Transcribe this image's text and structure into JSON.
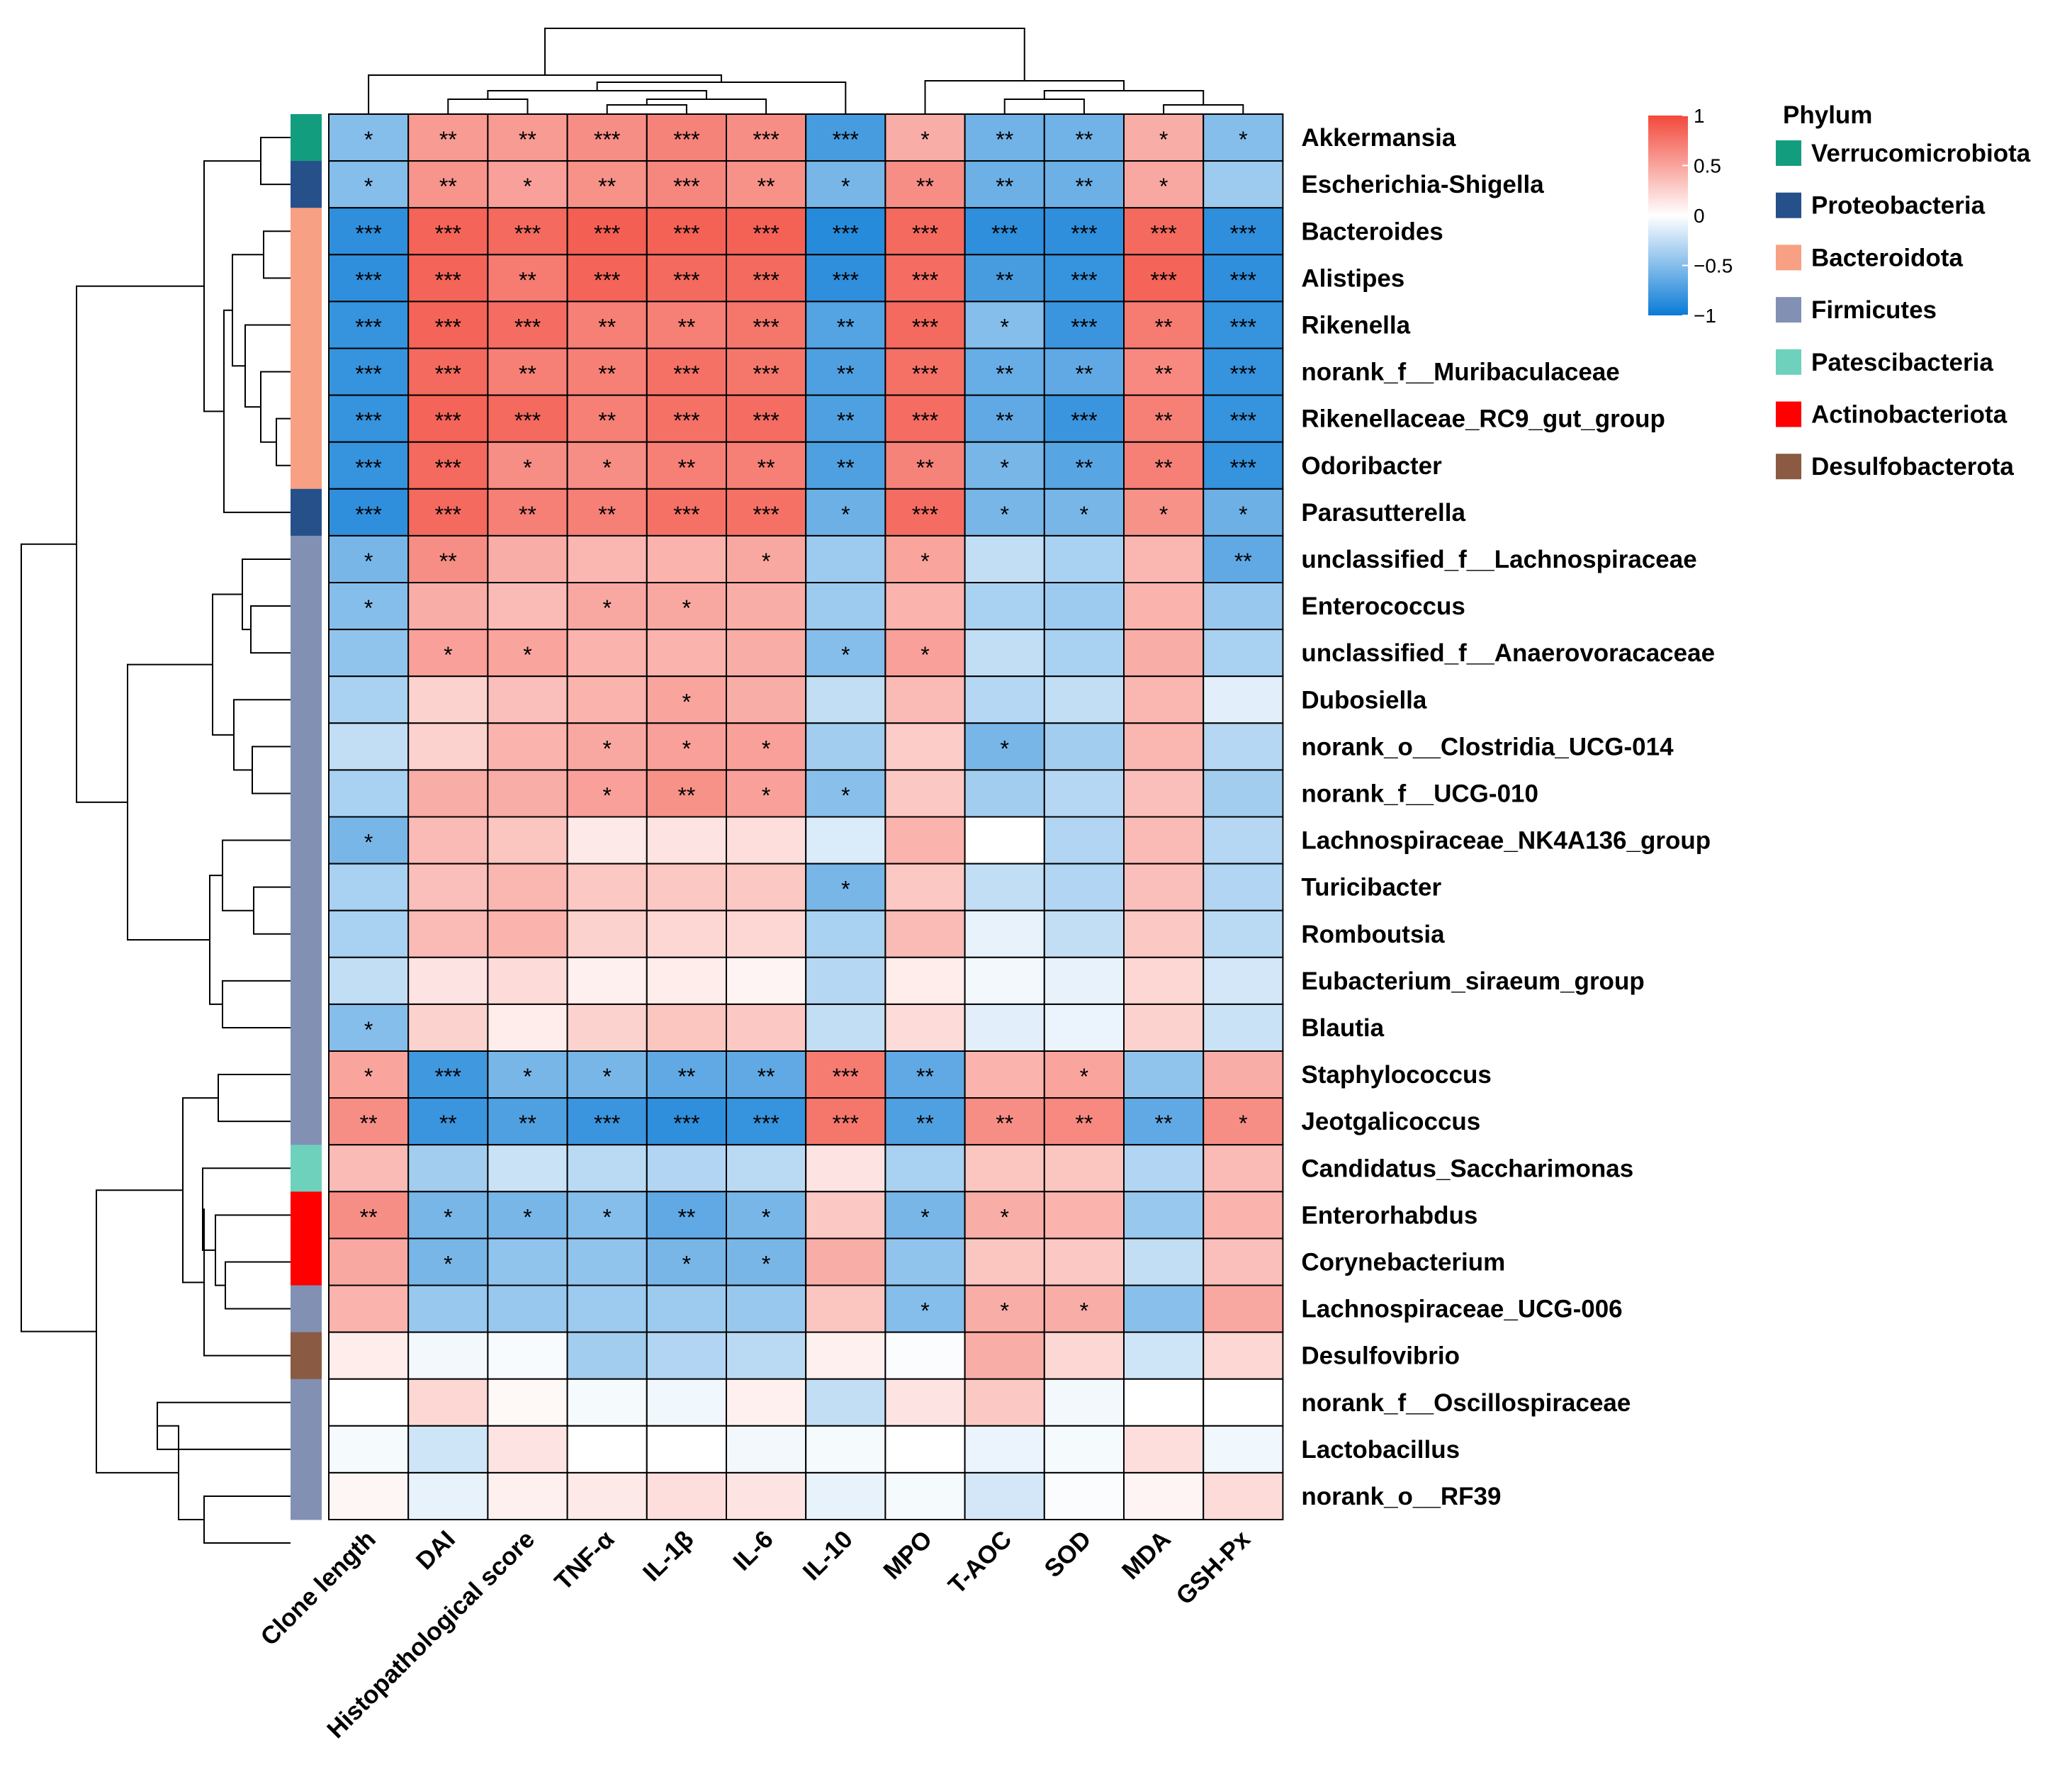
{
  "chart_data": {
    "type": "heatmap",
    "columns": [
      "Clone length",
      "DAI",
      "Histopathological score",
      "TNF-α",
      "IL-1β",
      "IL-6",
      "IL-10",
      "MPO",
      "T-AOC",
      "SOD",
      "MDA",
      "GSH-Px"
    ],
    "rows": [
      {
        "name": "Akkermansia",
        "phylum": "Verrucomicrobiota",
        "values": [
          -0.5,
          0.55,
          0.55,
          0.62,
          0.68,
          0.62,
          -0.75,
          0.45,
          -0.58,
          -0.58,
          0.45,
          -0.5
        ],
        "sig": [
          "*",
          "**",
          "**",
          "***",
          "***",
          "***",
          "***",
          "*",
          "**",
          "**",
          "*",
          "*"
        ]
      },
      {
        "name": "Escherichia-Shigella",
        "phylum": "Proteobacteria",
        "values": [
          -0.5,
          0.58,
          0.52,
          0.6,
          0.66,
          0.6,
          -0.55,
          0.62,
          -0.6,
          -0.6,
          0.48,
          -0.4
        ],
        "sig": [
          "*",
          "**",
          "*",
          "**",
          "***",
          "**",
          "*",
          "**",
          "**",
          "**",
          "*",
          ""
        ]
      },
      {
        "name": "Bacteroides",
        "phylum": "Bacteroidota",
        "values": [
          -0.85,
          0.85,
          0.82,
          0.88,
          0.86,
          0.86,
          -0.88,
          0.82,
          -0.85,
          -0.85,
          0.82,
          -0.85
        ],
        "sig": [
          "***",
          "***",
          "***",
          "***",
          "***",
          "***",
          "***",
          "***",
          "***",
          "***",
          "***",
          "***"
        ]
      },
      {
        "name": "Alistipes",
        "phylum": "Bacteroidota",
        "values": [
          -0.85,
          0.85,
          0.72,
          0.85,
          0.82,
          0.82,
          -0.85,
          0.8,
          -0.75,
          -0.82,
          0.85,
          -0.85
        ],
        "sig": [
          "***",
          "***",
          "**",
          "***",
          "***",
          "***",
          "***",
          "***",
          "**",
          "***",
          "***",
          "***"
        ]
      },
      {
        "name": "Rikenella",
        "phylum": "Bacteroidota",
        "values": [
          -0.82,
          0.85,
          0.8,
          0.7,
          0.7,
          0.75,
          -0.7,
          0.82,
          -0.5,
          -0.8,
          0.72,
          -0.82
        ],
        "sig": [
          "***",
          "***",
          "***",
          "**",
          "**",
          "***",
          "**",
          "***",
          "*",
          "***",
          "**",
          "***"
        ]
      },
      {
        "name": "norank_f__Muribaculaceae",
        "phylum": "Bacteroidota",
        "values": [
          -0.82,
          0.82,
          0.7,
          0.7,
          0.78,
          0.75,
          -0.72,
          0.78,
          -0.62,
          -0.65,
          0.65,
          -0.82
        ],
        "sig": [
          "***",
          "***",
          "**",
          "**",
          "***",
          "***",
          "**",
          "***",
          "**",
          "**",
          "**",
          "***"
        ]
      },
      {
        "name": "Rikenellaceae_RC9_gut_group",
        "phylum": "Bacteroidota",
        "values": [
          -0.82,
          0.85,
          0.82,
          0.7,
          0.78,
          0.8,
          -0.72,
          0.8,
          -0.65,
          -0.8,
          0.7,
          -0.82
        ],
        "sig": [
          "***",
          "***",
          "***",
          "**",
          "***",
          "***",
          "**",
          "***",
          "**",
          "***",
          "**",
          "***"
        ]
      },
      {
        "name": "Odoribacter",
        "phylum": "Bacteroidota",
        "values": [
          -0.82,
          0.82,
          0.62,
          0.62,
          0.7,
          0.7,
          -0.72,
          0.68,
          -0.55,
          -0.68,
          0.7,
          -0.82
        ],
        "sig": [
          "***",
          "***",
          "*",
          "*",
          "**",
          "**",
          "**",
          "**",
          "*",
          "**",
          "**",
          "***"
        ]
      },
      {
        "name": "Parasutterella",
        "phylum": "Proteobacteria",
        "values": [
          -0.85,
          0.82,
          0.7,
          0.7,
          0.78,
          0.78,
          -0.6,
          0.8,
          -0.55,
          -0.55,
          0.6,
          -0.6
        ],
        "sig": [
          "***",
          "***",
          "**",
          "**",
          "***",
          "***",
          "*",
          "***",
          "*",
          "*",
          "*",
          "*"
        ]
      },
      {
        "name": "unclassified_f__Lachnospiraceae",
        "phylum": "Firmicutes",
        "values": [
          -0.55,
          0.62,
          0.45,
          0.4,
          0.42,
          0.48,
          -0.4,
          0.5,
          -0.25,
          -0.35,
          0.4,
          -0.65
        ],
        "sig": [
          "*",
          "**",
          "",
          "",
          "",
          "*",
          "",
          "*",
          "",
          "",
          "",
          "**"
        ]
      },
      {
        "name": "Enterococcus",
        "phylum": "Firmicutes",
        "values": [
          -0.5,
          0.45,
          0.38,
          0.48,
          0.48,
          0.45,
          -0.4,
          0.42,
          -0.35,
          -0.4,
          0.42,
          -0.42
        ],
        "sig": [
          "*",
          "",
          "",
          "*",
          "*",
          "",
          "",
          "",
          "",
          "",
          "",
          ""
        ]
      },
      {
        "name": "unclassified_f__Anaerovoracaceae",
        "phylum": "Firmicutes",
        "values": [
          -0.45,
          0.52,
          0.5,
          0.42,
          0.42,
          0.45,
          -0.5,
          0.52,
          -0.25,
          -0.35,
          0.45,
          -0.35
        ],
        "sig": [
          "",
          "*",
          "*",
          "",
          "",
          "",
          "*",
          "*",
          "",
          "",
          "",
          ""
        ]
      },
      {
        "name": "Dubosiella",
        "phylum": "Firmicutes",
        "values": [
          -0.35,
          0.25,
          0.35,
          0.42,
          0.5,
          0.45,
          -0.25,
          0.38,
          -0.3,
          -0.25,
          0.4,
          -0.12
        ],
        "sig": [
          "",
          "",
          "",
          "",
          "*",
          "",
          "",
          "",
          "",
          "",
          "",
          ""
        ]
      },
      {
        "name": "norank_o__Clostridia_UCG-014",
        "phylum": "Firmicutes",
        "values": [
          -0.25,
          0.25,
          0.42,
          0.48,
          0.52,
          0.52,
          -0.38,
          0.28,
          -0.55,
          -0.38,
          0.4,
          -0.3
        ],
        "sig": [
          "",
          "",
          "",
          "*",
          "*",
          "*",
          "",
          "",
          "*",
          "",
          "",
          ""
        ]
      },
      {
        "name": "norank_f__UCG-010",
        "phylum": "Firmicutes",
        "values": [
          -0.35,
          0.45,
          0.45,
          0.52,
          0.6,
          0.52,
          -0.48,
          0.3,
          -0.38,
          -0.3,
          0.35,
          -0.38
        ],
        "sig": [
          "",
          "",
          "",
          "*",
          "**",
          "*",
          "*",
          "",
          "",
          "",
          "",
          ""
        ]
      },
      {
        "name": "Lachnospiraceae_NK4A136_group",
        "phylum": "Firmicutes",
        "values": [
          -0.55,
          0.38,
          0.32,
          0.12,
          0.15,
          0.18,
          -0.15,
          0.42,
          0.0,
          -0.32,
          0.38,
          -0.3
        ],
        "sig": [
          "*",
          "",
          "",
          "",
          "",
          "",
          "",
          "",
          "",
          "",
          "",
          ""
        ]
      },
      {
        "name": "Turicibacter",
        "phylum": "Firmicutes",
        "values": [
          -0.35,
          0.35,
          0.4,
          0.3,
          0.3,
          0.3,
          -0.55,
          0.3,
          -0.25,
          -0.32,
          0.35,
          -0.32
        ],
        "sig": [
          "",
          "",
          "",
          "",
          "",
          "",
          "*",
          "",
          "",
          "",
          "",
          ""
        ]
      },
      {
        "name": "Romboutsia",
        "phylum": "Firmicutes",
        "values": [
          -0.35,
          0.38,
          0.42,
          0.25,
          0.22,
          0.22,
          -0.35,
          0.38,
          -0.1,
          -0.25,
          0.3,
          -0.28
        ],
        "sig": [
          "",
          "",
          "",
          "",
          "",
          "",
          "",
          "",
          "",
          "",
          "",
          ""
        ]
      },
      {
        "name": "Eubacterium_siraeum_group",
        "phylum": "Firmicutes",
        "values": [
          -0.25,
          0.15,
          0.2,
          0.08,
          0.1,
          0.06,
          -0.3,
          0.1,
          -0.05,
          -0.1,
          0.22,
          -0.18
        ],
        "sig": [
          "",
          "",
          "",
          "",
          "",
          "",
          "",
          "",
          "",
          "",
          "",
          ""
        ]
      },
      {
        "name": "Blautia",
        "phylum": "Firmicutes",
        "values": [
          -0.5,
          0.25,
          0.1,
          0.25,
          0.32,
          0.3,
          -0.25,
          0.2,
          -0.12,
          -0.08,
          0.25,
          -0.22
        ],
        "sig": [
          "*",
          "",
          "",
          "",
          "",
          "",
          "",
          "",
          "",
          "",
          "",
          ""
        ]
      },
      {
        "name": "Staphylococcus",
        "phylum": "Firmicutes",
        "values": [
          0.5,
          -0.78,
          -0.55,
          -0.55,
          -0.65,
          -0.65,
          0.72,
          -0.65,
          0.42,
          0.5,
          -0.45,
          0.45
        ],
        "sig": [
          "*",
          "***",
          "*",
          "*",
          "**",
          "**",
          "***",
          "**",
          "",
          "*",
          "",
          ""
        ]
      },
      {
        "name": "Jeotgalicoccus",
        "phylum": "Firmicutes",
        "values": [
          0.62,
          -0.8,
          -0.72,
          -0.8,
          -0.85,
          -0.82,
          0.75,
          -0.72,
          0.62,
          0.65,
          -0.65,
          0.62
        ],
        "sig": [
          "**",
          "**",
          "**",
          "***",
          "***",
          "***",
          "***",
          "**",
          "**",
          "**",
          "**",
          "*"
        ]
      },
      {
        "name": "Candidatus_Saccharimonas",
        "phylum": "Patescibacteria",
        "values": [
          0.38,
          -0.38,
          -0.22,
          -0.28,
          -0.32,
          -0.28,
          0.15,
          -0.35,
          0.32,
          0.32,
          -0.32,
          0.38
        ],
        "sig": [
          "",
          "",
          "",
          "",
          "",
          "",
          "",
          "",
          "",
          "",
          "",
          ""
        ]
      },
      {
        "name": "Enterorhabdus",
        "phylum": "Actinobacteriota",
        "values": [
          0.62,
          -0.55,
          -0.55,
          -0.5,
          -0.65,
          -0.55,
          0.3,
          -0.55,
          0.45,
          0.42,
          -0.42,
          0.42
        ],
        "sig": [
          "**",
          "*",
          "*",
          "*",
          "**",
          "*",
          "",
          "*",
          "*",
          "",
          "",
          ""
        ]
      },
      {
        "name": "Corynebacterium",
        "phylum": "Actinobacteriota",
        "values": [
          0.48,
          -0.55,
          -0.45,
          -0.45,
          -0.55,
          -0.55,
          0.45,
          -0.45,
          0.32,
          0.3,
          -0.25,
          0.35
        ],
        "sig": [
          "",
          "*",
          "",
          "",
          "*",
          "*",
          "",
          "",
          "",
          "",
          "",
          ""
        ]
      },
      {
        "name": "Lachnospiraceae_UCG-006",
        "phylum": "Firmicutes",
        "values": [
          0.42,
          -0.42,
          -0.42,
          -0.4,
          -0.4,
          -0.42,
          0.32,
          -0.5,
          0.45,
          0.45,
          -0.48,
          0.48
        ],
        "sig": [
          "",
          "",
          "",
          "",
          "",
          "",
          "",
          "*",
          "*",
          "*",
          "",
          ""
        ]
      },
      {
        "name": "Desulfovibrio",
        "phylum": "Desulfobacterota",
        "values": [
          0.1,
          -0.05,
          -0.03,
          -0.38,
          -0.32,
          -0.28,
          0.08,
          -0.02,
          0.45,
          0.22,
          -0.2,
          0.22
        ],
        "sig": [
          "",
          "",
          "",
          "",
          "",
          "",
          "",
          "",
          "",
          "",
          "",
          ""
        ]
      },
      {
        "name": "norank_f__Oscillospiraceae",
        "phylum": "Firmicutes",
        "values": [
          0.0,
          0.22,
          0.04,
          -0.04,
          -0.06,
          0.08,
          -0.25,
          0.15,
          0.3,
          -0.05,
          0.0,
          0.0
        ],
        "sig": [
          "",
          "",
          "",
          "",
          "",
          "",
          "",
          "",
          "",
          "",
          "",
          ""
        ]
      },
      {
        "name": "Lactobacillus",
        "phylum": "Firmicutes",
        "values": [
          -0.04,
          -0.2,
          0.15,
          0.0,
          0.0,
          -0.05,
          -0.04,
          0.0,
          -0.08,
          -0.04,
          0.18,
          -0.06
        ],
        "sig": [
          "",
          "",
          "",
          "",
          "",
          "",
          "",
          "",
          "",
          "",
          "",
          ""
        ]
      },
      {
        "name": "norank_o__RF39",
        "phylum": "Firmicutes",
        "values": [
          0.05,
          -0.1,
          0.08,
          0.12,
          0.18,
          0.15,
          -0.1,
          -0.04,
          -0.18,
          -0.02,
          0.06,
          0.2
        ],
        "sig": [
          "",
          "",
          "",
          "",
          "",
          "",
          "",
          "",
          "",
          "",
          "",
          ""
        ]
      }
    ],
    "color_scale": {
      "min": -1,
      "max": 1,
      "low": "#0a7bd6",
      "mid": "#ffffff",
      "high": "#f2493b"
    },
    "colorbar_ticks": [
      {
        "value": 1,
        "label": "1"
      },
      {
        "value": 0.5,
        "label": "0.5"
      },
      {
        "value": 0,
        "label": "0"
      },
      {
        "value": -0.5,
        "label": "−0.5"
      },
      {
        "value": -1,
        "label": "−1"
      }
    ],
    "legend": {
      "title": "Phylum",
      "items": [
        {
          "label": "Verrucomicrobiota",
          "color": "#129e7e"
        },
        {
          "label": "Proteobacteria",
          "color": "#26508a"
        },
        {
          "label": "Bacteroidota",
          "color": "#f8a083"
        },
        {
          "label": "Firmicutes",
          "color": "#8291b3"
        },
        {
          "label": "Patescibacteria",
          "color": "#6dd1bc"
        },
        {
          "label": "Actinobacteriota",
          "color": "#ff0000"
        },
        {
          "label": "Desulfobacterota",
          "color": "#8a5a42"
        }
      ]
    }
  }
}
